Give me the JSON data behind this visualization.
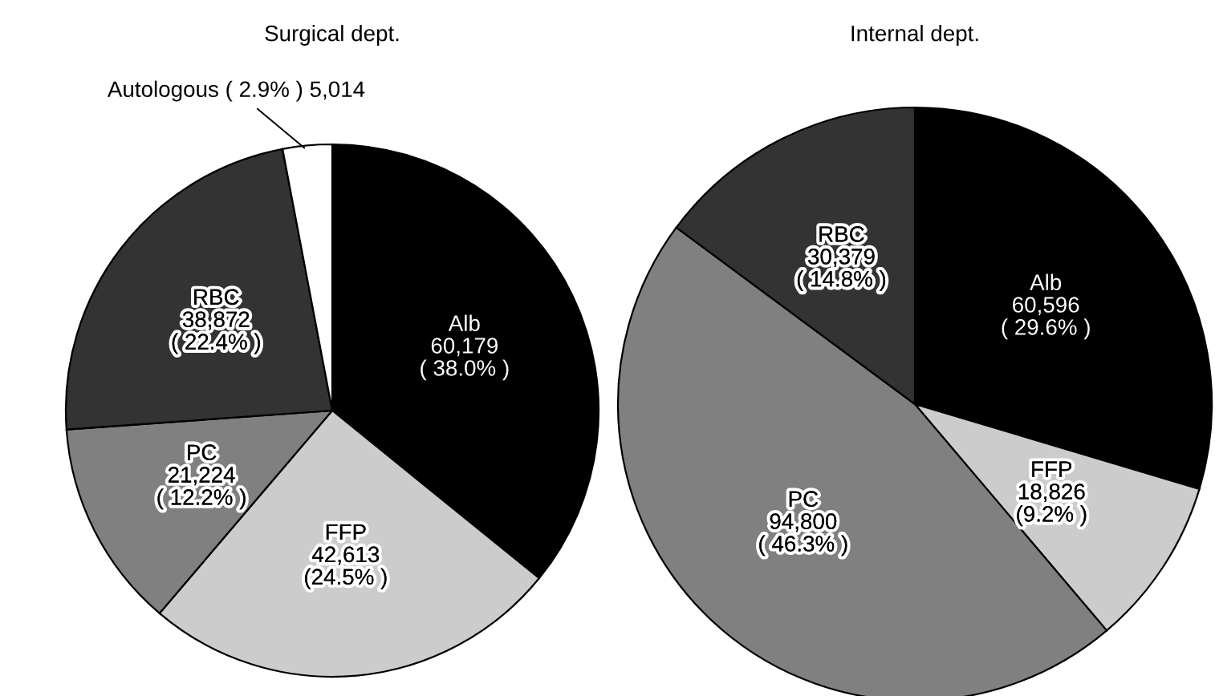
{
  "chart_data": [
    {
      "type": "pie",
      "title": "Surgical dept.",
      "categories": [
        "Alb",
        "FFP",
        "PC",
        "RBC",
        "Autologous"
      ],
      "values": [
        60179,
        42613,
        21224,
        38872,
        5014
      ],
      "colors": [
        "#000000",
        "#cccccc",
        "#808080",
        "#333333",
        "#ffffff"
      ],
      "value_labels": [
        "60,179\n( 38.0% )",
        "42,613\n(24.5% )",
        "21,224\n( 12.2% )",
        "38,872\n( 22.4% )",
        "( 2.9% ) 5,014"
      ]
    },
    {
      "type": "pie",
      "title": "Internal dept.",
      "categories": [
        "Alb",
        "FFP",
        "PC",
        "RBC"
      ],
      "values": [
        60596,
        18826,
        94800,
        30379
      ],
      "colors": [
        "#000000",
        "#cccccc",
        "#808080",
        "#333333"
      ],
      "value_labels": [
        "60,596\n( 29.6% )",
        "18,826\n(9.2% )",
        "94,800\n( 46.3% )",
        "30,379\n( 14.8% )"
      ]
    }
  ]
}
